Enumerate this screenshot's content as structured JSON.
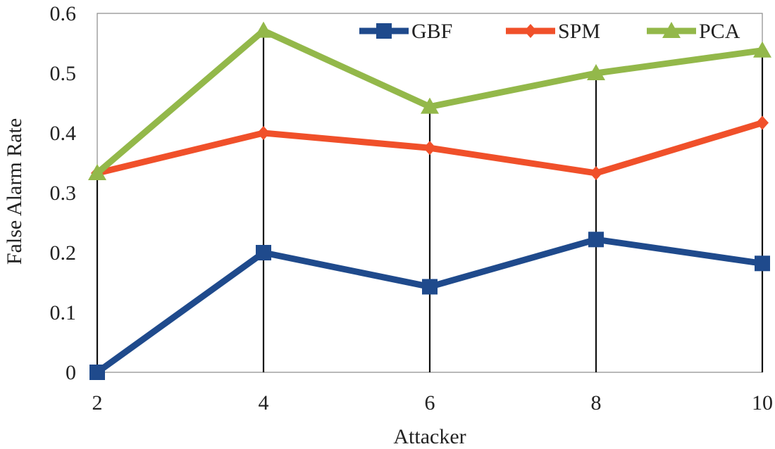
{
  "chart_data": {
    "type": "line",
    "title": "",
    "xlabel": "Attacker",
    "ylabel": "False Alarm Rate",
    "x": [
      2,
      4,
      6,
      8,
      10
    ],
    "x_tick_labels": [
      "2",
      "4",
      "6",
      "8",
      "10"
    ],
    "ylim": [
      0,
      0.6
    ],
    "y_ticks": [
      0,
      0.1,
      0.2,
      0.3,
      0.4,
      0.5,
      0.6
    ],
    "y_tick_labels": [
      "0",
      "0.1",
      "0.2",
      "0.3",
      "0.4",
      "0.5",
      "0.6"
    ],
    "drop_lines": true,
    "legend_position": "top-right",
    "series": [
      {
        "name": "GBF",
        "values": [
          0.0,
          0.2,
          0.143,
          0.222,
          0.182
        ],
        "color": "#1f4a8c",
        "marker": "square"
      },
      {
        "name": "SPM",
        "values": [
          0.333,
          0.4,
          0.375,
          0.333,
          0.417
        ],
        "color": "#f0502a",
        "marker": "diamond"
      },
      {
        "name": "PCA",
        "values": [
          0.333,
          0.571,
          0.444,
          0.5,
          0.538
        ],
        "color": "#93b84a",
        "marker": "triangle"
      }
    ]
  }
}
